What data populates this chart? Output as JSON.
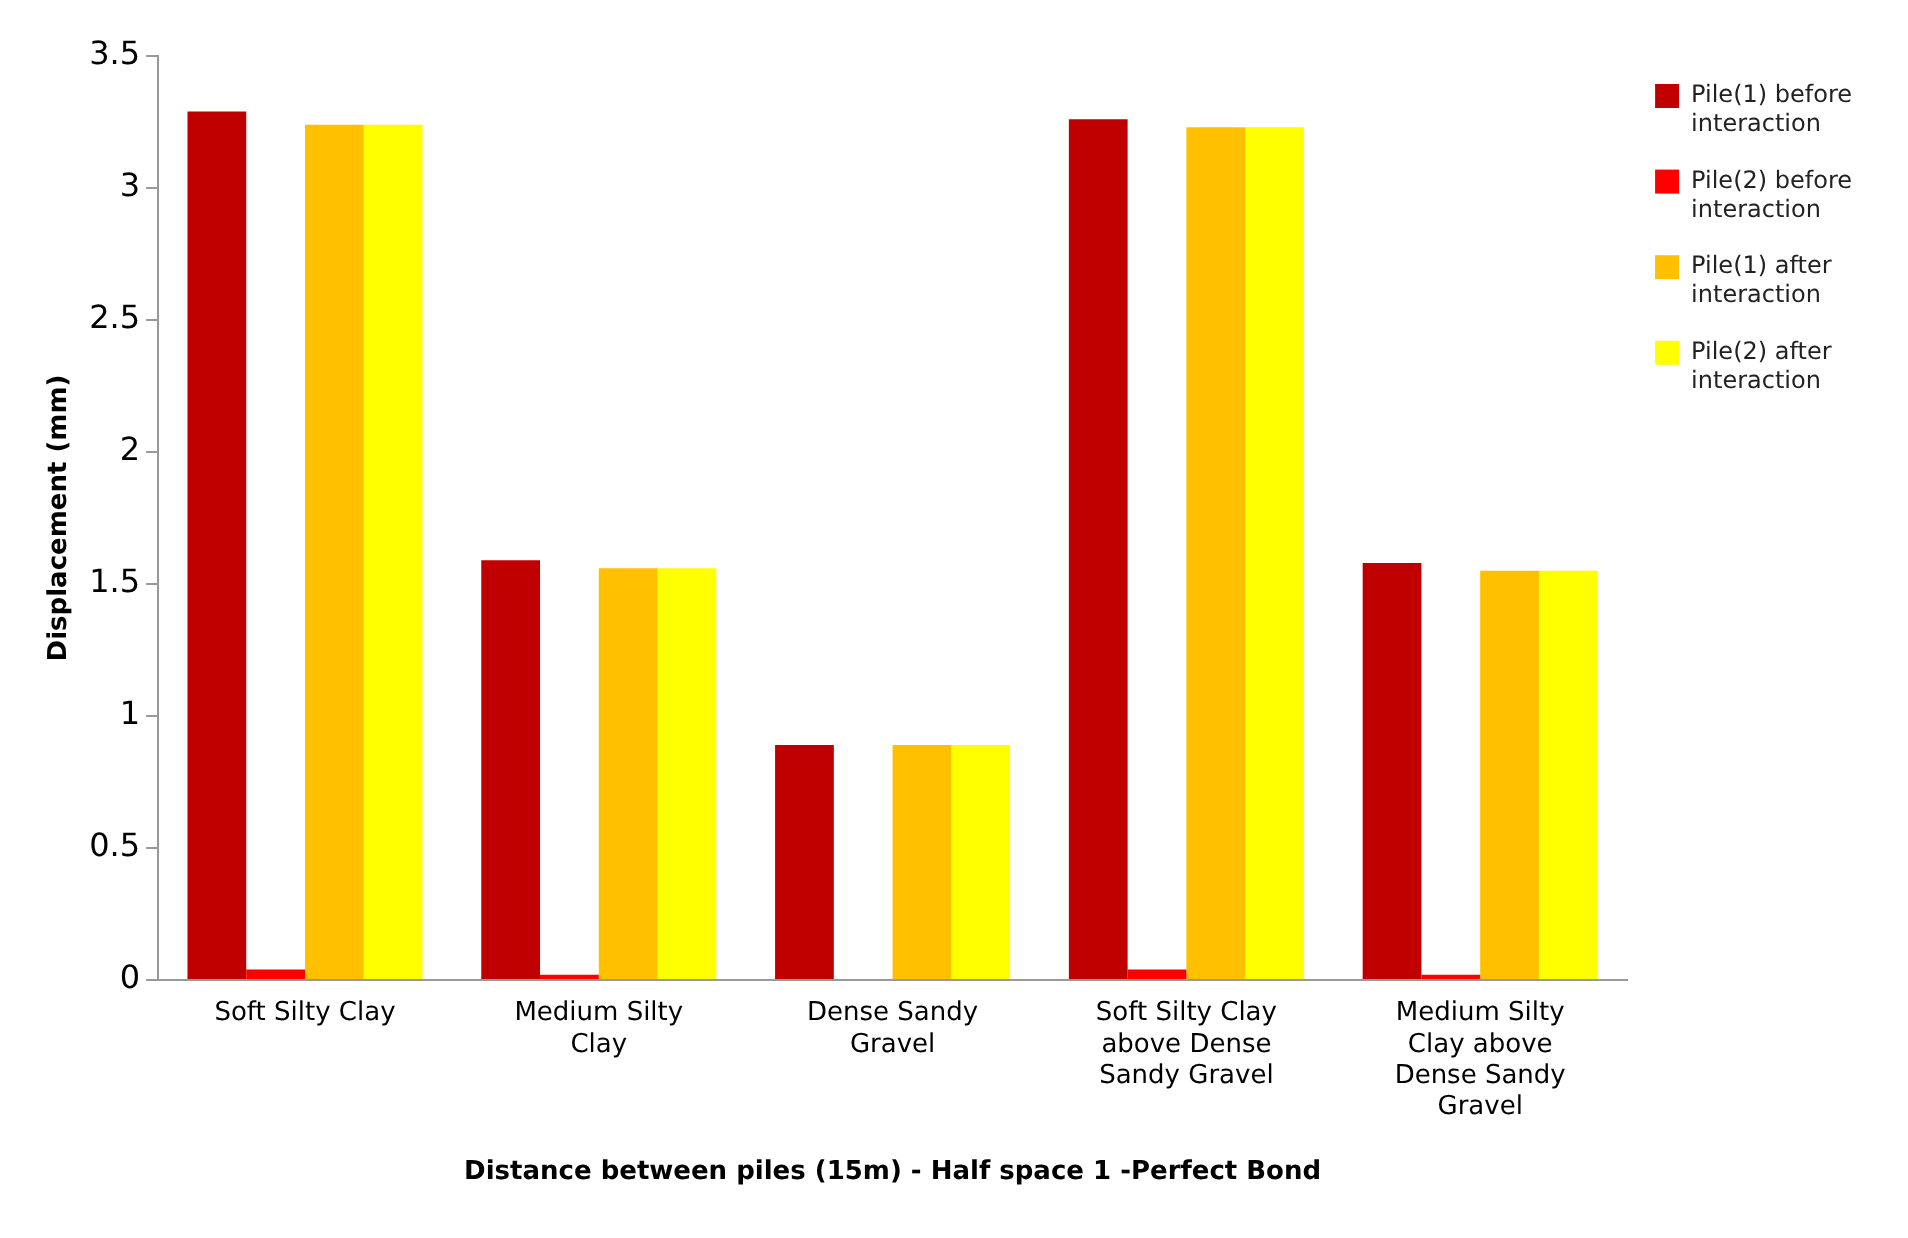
{
  "chart_data": {
    "type": "bar",
    "xlabel": "Distance between piles (15m) - Half space 1 -Perfect Bond",
    "ylabel": "Displacement (mm)",
    "categories": [
      "Soft Silty Clay",
      "Medium Silty Clay",
      "Dense Sandy Gravel",
      "Soft Silty Clay above Dense Sandy Gravel",
      "Medium Silty Clay above Dense Sandy Gravel"
    ],
    "series": [
      {
        "name": "Pile(1) before interaction",
        "color": "#c00000",
        "values": [
          3.29,
          1.59,
          0.89,
          3.26,
          1.58
        ]
      },
      {
        "name": "Pile(2) before interaction",
        "color": "#ff0000",
        "values": [
          0.04,
          0.02,
          0,
          0.04,
          0.02
        ]
      },
      {
        "name": "Pile(1) after interaction",
        "color": "#ffc000",
        "values": [
          3.24,
          1.56,
          0.89,
          3.23,
          1.55
        ]
      },
      {
        "name": "Pile(2) after interaction",
        "color": "#ffff00",
        "values": [
          3.24,
          1.56,
          0.89,
          3.23,
          1.55
        ]
      }
    ],
    "ylim": [
      0,
      3.5
    ],
    "yticks": [
      0,
      0.5,
      1,
      1.5,
      2,
      2.5,
      3,
      3.5
    ],
    "grid": false,
    "legend": "right"
  }
}
